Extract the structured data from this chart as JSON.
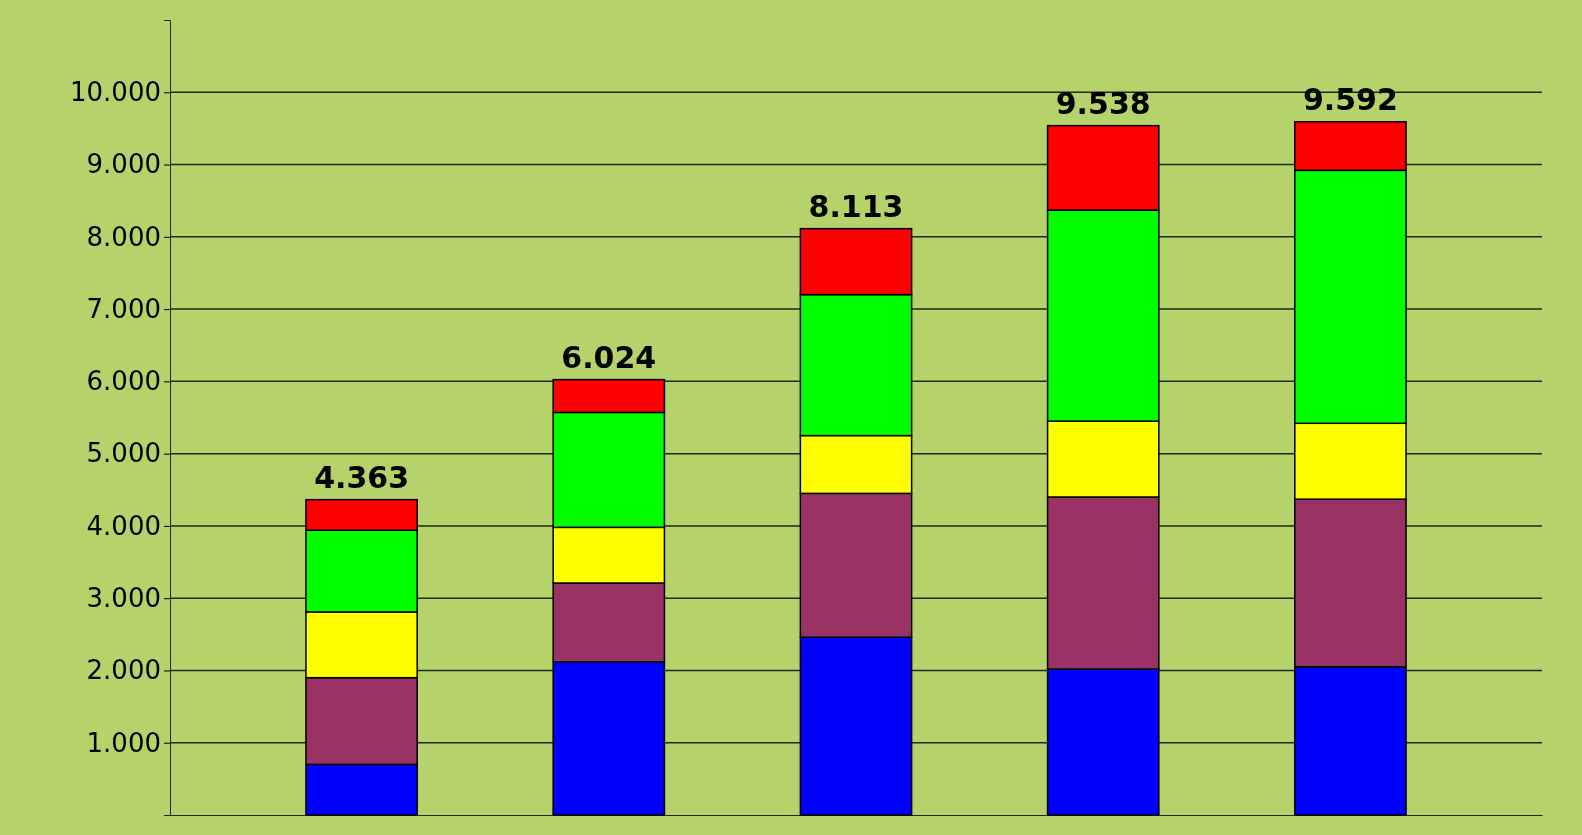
{
  "chart_data": {
    "type": "bar",
    "stacked": true,
    "categories": [
      null,
      null,
      null,
      null,
      null
    ],
    "series": [
      {
        "color": "#0000ff",
        "values": [
          700,
          2120,
          2460,
          2020,
          2050
        ]
      },
      {
        "color": "#993366",
        "values": [
          1200,
          1090,
          1990,
          2380,
          2320
        ]
      },
      {
        "color": "#ffff00",
        "values": [
          910,
          770,
          800,
          1050,
          1050
        ]
      },
      {
        "color": "#00ff00",
        "values": [
          1130,
          1590,
          1950,
          2920,
          3500
        ]
      },
      {
        "color": "#ff0000",
        "values": [
          423,
          454,
          913,
          1168,
          672
        ]
      }
    ],
    "totals": [
      "4.363",
      "6.024",
      "8.113",
      "9.538",
      "9.592"
    ],
    "ylim": [
      0,
      11000
    ],
    "yticks": [
      {
        "value": 1000,
        "label": "1.000"
      },
      {
        "value": 2000,
        "label": "2.000"
      },
      {
        "value": 3000,
        "label": "3.000"
      },
      {
        "value": 4000,
        "label": "4.000"
      },
      {
        "value": 5000,
        "label": "5.000"
      },
      {
        "value": 6000,
        "label": "6.000"
      },
      {
        "value": 7000,
        "label": "7.000"
      },
      {
        "value": 8000,
        "label": "8.000"
      },
      {
        "value": 9000,
        "label": "9.000"
      },
      {
        "value": 10000,
        "label": "10.000"
      }
    ],
    "grid": true
  }
}
